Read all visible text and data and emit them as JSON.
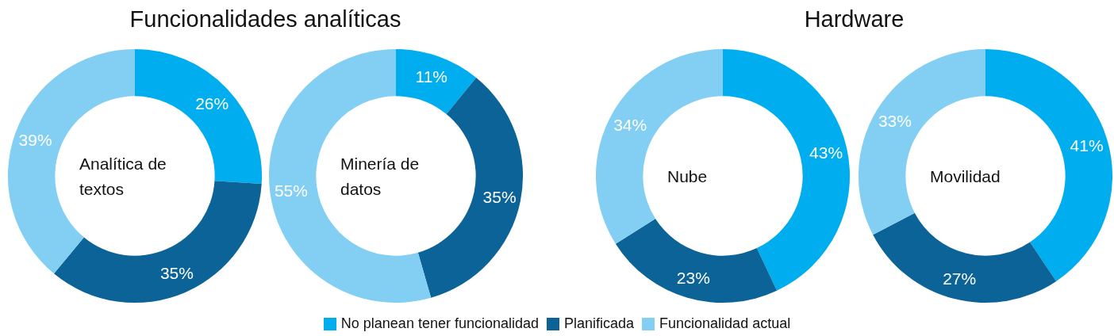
{
  "chart_data": [
    {
      "type": "donut",
      "title": "Funcionalidades analíticas",
      "subtitle": "Analítica de textos",
      "categories": [
        "No planean tener funcionalidad",
        "Planificada",
        "Funcionalidad actual"
      ],
      "values": [
        26,
        35,
        39
      ],
      "value_labels": [
        "26%",
        "35%",
        "39%"
      ],
      "colors": [
        "#00aeef",
        "#0b6398",
        "#82cff3"
      ],
      "legend": "bottom"
    },
    {
      "type": "donut",
      "subtitle": "Minería de datos",
      "categories": [
        null,
        null,
        null
      ],
      "values": [
        11,
        35,
        55
      ],
      "value_labels": [
        "11%",
        "35%",
        "55%"
      ],
      "colors": [
        "#00aeef",
        "#0b6398",
        "#82cff3"
      ]
    },
    {
      "type": "donut",
      "title": "Hardware",
      "subtitle": "Nube",
      "categories": [
        null,
        null,
        null
      ],
      "values": [
        43,
        23,
        34
      ],
      "value_labels": [
        "43%",
        "23%",
        "34%"
      ],
      "colors": [
        "#00aeef",
        "#0b6398",
        "#82cff3"
      ]
    },
    {
      "type": "donut",
      "subtitle": "Movilidad",
      "categories": [
        null,
        null,
        null
      ],
      "values": [
        41,
        27,
        33
      ],
      "value_labels": [
        "41%",
        "27%",
        "33%"
      ],
      "colors": [
        "#00aeef",
        "#0b6398",
        "#82cff3"
      ]
    }
  ]
}
